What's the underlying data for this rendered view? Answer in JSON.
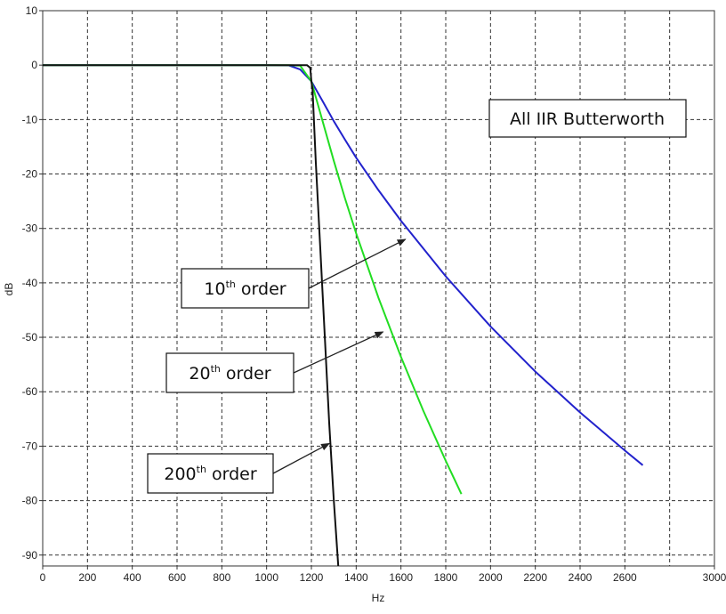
{
  "chart_data": {
    "type": "line",
    "xlabel": "Hz",
    "ylabel": "dB",
    "xlim": [
      0,
      3000
    ],
    "ylim": [
      -92,
      10
    ],
    "x_ticks": [
      0,
      200,
      400,
      600,
      800,
      1000,
      1200,
      1400,
      1600,
      1800,
      2000,
      2200,
      2400,
      2600,
      3000
    ],
    "x_tick_labels": [
      "0",
      "200",
      "400",
      "600",
      "800",
      "1000",
      "1200",
      "1400",
      "1600",
      "1800",
      "2000",
      "2200",
      "2400",
      "2600",
      "3000"
    ],
    "y_ticks": [
      10,
      0,
      -10,
      -20,
      -30,
      -40,
      -50,
      -60,
      -70,
      -80,
      -90
    ],
    "y_tick_labels": [
      "10",
      "0",
      "-10",
      "-20",
      "-30",
      "-40",
      "-50",
      "-60",
      "-70",
      "-80",
      "-90"
    ],
    "grid": true,
    "series": [
      {
        "color": "#2222cc",
        "x": [
          0,
          1000,
          1100,
          1150,
          1200,
          1250,
          1300,
          1350,
          1400,
          1500,
          1600,
          1800,
          2000,
          2200,
          2400,
          2600,
          2680
        ],
        "y": [
          0,
          0,
          -0.05,
          -0.8,
          -3,
          -6.6,
          -10.3,
          -13.7,
          -17,
          -23,
          -28.6,
          -38.8,
          -48,
          -56.3,
          -63.8,
          -70.8,
          -73.5
        ]
      },
      {
        "color": "#22dd22",
        "x": [
          0,
          1100,
          1150,
          1200,
          1250,
          1300,
          1350,
          1400,
          1500,
          1600,
          1700,
          1800,
          1870
        ],
        "y": [
          0,
          0,
          -0.1,
          -3,
          -10.3,
          -17.6,
          -24.5,
          -30.9,
          -42.8,
          -53.6,
          -63.5,
          -72.7,
          -78.8
        ]
      },
      {
        "color": "#111111",
        "x": [
          0,
          1180,
          1195,
          1200,
          1205,
          1220,
          1240,
          1260,
          1280,
          1300,
          1320
        ],
        "y": [
          0,
          0,
          -0.5,
          -3,
          -4.5,
          -18,
          -34,
          -50,
          -66,
          -80,
          -92
        ]
      }
    ],
    "annotations": [
      {
        "base": "10",
        "sup": "th",
        "rest": " order",
        "target_x": 1620,
        "target_y": -32
      },
      {
        "base": "20",
        "sup": "th",
        "rest": " order",
        "target_x": 1520,
        "target_y": -49
      },
      {
        "base": "200",
        "sup": "th",
        "rest": " order",
        "target_x": 1280,
        "target_y": -69.5
      }
    ],
    "legend_box": "All IIR Butterworth"
  }
}
